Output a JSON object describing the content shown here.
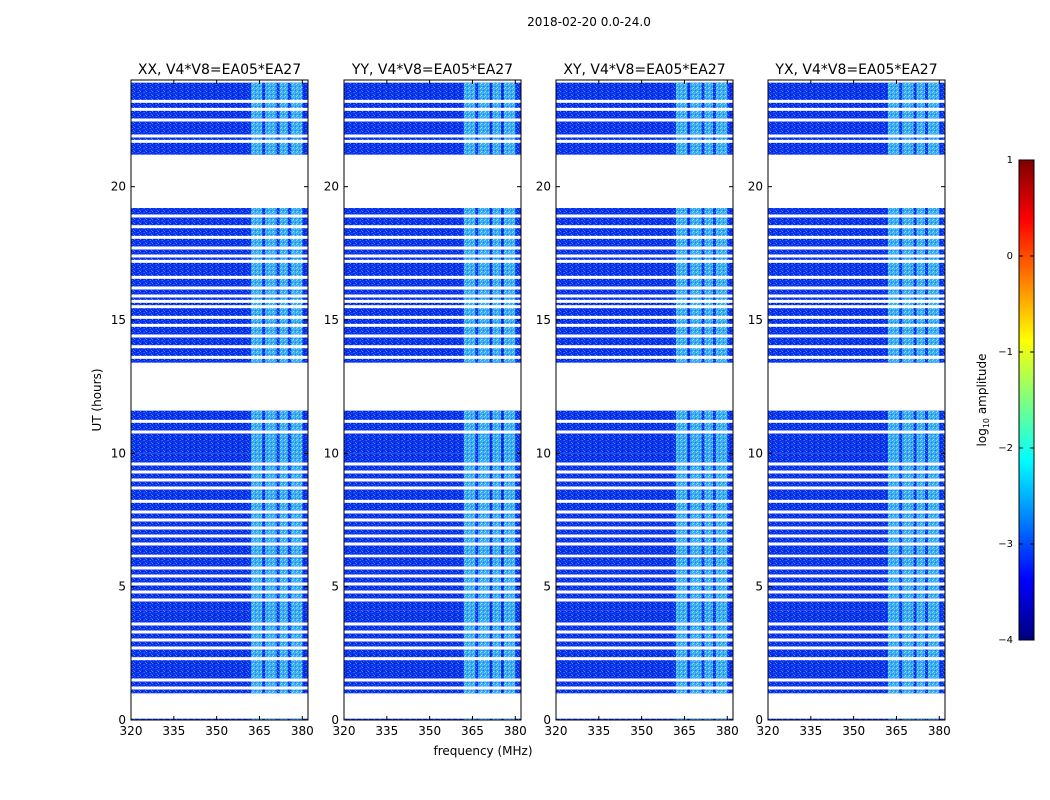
{
  "chart_data": {
    "type": "heatmap",
    "suptitle": "2018-02-20 0.0-24.0",
    "xlabel": "frequency (MHz)",
    "ylabel": "UT (hours)",
    "xlim": [
      320,
      382
    ],
    "ylim": [
      0,
      24
    ],
    "xticks": [
      320,
      335,
      350,
      365,
      380
    ],
    "yticks": [
      0,
      5,
      10,
      15,
      20
    ],
    "panels": [
      {
        "title": "XX, V4*V8=EA05*EA27",
        "polarization": "XX"
      },
      {
        "title": "YY, V4*V8=EA05*EA27",
        "polarization": "YY"
      },
      {
        "title": "XY, V4*V8=EA05*EA27",
        "polarization": "XY"
      },
      {
        "title": "YX, V4*V8=EA05*EA27",
        "polarization": "YX"
      }
    ],
    "data_blocks_ut_hours": [
      [
        21.2,
        23.9
      ],
      [
        13.4,
        19.2
      ],
      [
        10.0,
        11.6
      ],
      [
        6.2,
        10.0
      ],
      [
        4.1,
        6.1
      ],
      [
        1.0,
        4.1
      ],
      [
        0.0,
        0.05
      ]
    ],
    "gap_rows_ut_hours": [
      23.2,
      22.9,
      22.5,
      21.9,
      21.7,
      18.9,
      18.5,
      18.1,
      17.7,
      17.4,
      17.2,
      16.6,
      16.2,
      15.9,
      15.7,
      15.5,
      15.1,
      14.8,
      14.4,
      14.0,
      13.6,
      11.2,
      10.8,
      9.6,
      9.3,
      9.0,
      8.7,
      8.2,
      7.8,
      7.5,
      7.2,
      6.9,
      6.6,
      5.7,
      5.4,
      5.1,
      4.8,
      4.5,
      3.6,
      3.3,
      3.0,
      2.7,
      2.3,
      1.5,
      1.2
    ],
    "rfi_bands_mhz": [
      [
        362,
        366
      ],
      [
        367,
        371
      ],
      [
        372,
        375
      ],
      [
        376,
        380
      ]
    ],
    "colorbar": {
      "label": "log10 amplitude",
      "label_base": "log",
      "label_sub": "10",
      "label_rest": " amplitude",
      "range": [
        -4,
        1
      ],
      "ticks": [
        "1",
        "0",
        "−1",
        "−2",
        "−3",
        "−4"
      ],
      "tick_values": [
        1,
        0,
        -1,
        -2,
        -3,
        -4
      ],
      "colormap": "jet",
      "colors": [
        "#00007f",
        "#0000ff",
        "#007fff",
        "#00ffff",
        "#7fff7f",
        "#ffff00",
        "#ff7f00",
        "#ff0000",
        "#7f0000"
      ]
    }
  }
}
